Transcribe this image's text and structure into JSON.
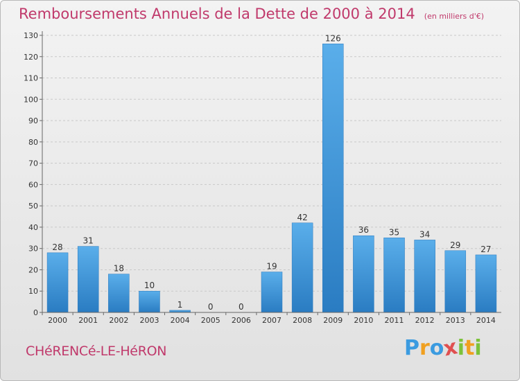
{
  "chart_data": {
    "type": "bar",
    "title": "Remboursements Annuels de la Dette de 2000 à 2014",
    "unit": "(en milliers d'€)",
    "categories": [
      "2000",
      "2001",
      "2002",
      "2003",
      "2004",
      "2005",
      "2006",
      "2007",
      "2008",
      "2009",
      "2010",
      "2011",
      "2012",
      "2013",
      "2014"
    ],
    "values": [
      28,
      31,
      18,
      10,
      1,
      0,
      0,
      19,
      42,
      126,
      36,
      35,
      34,
      29,
      27
    ],
    "data_labels": [
      "28",
      "31",
      "18",
      "10",
      "1",
      "0",
      "0",
      "19",
      "42",
      "126",
      "36",
      "35",
      "34",
      "29",
      "27"
    ],
    "ylim": [
      0,
      130
    ],
    "yticks": [
      0,
      10,
      20,
      30,
      40,
      50,
      60,
      70,
      80,
      90,
      100,
      110,
      120,
      130
    ],
    "grid": true,
    "bar_color": "#3a8fd4",
    "label_color": "#333333"
  },
  "footer": {
    "commune": "CHéRENCé-LE-HéRON",
    "logo_letters": [
      "P",
      "r",
      "o",
      "x",
      "i",
      "t",
      "i"
    ],
    "logo_colors": [
      "#3b9be0",
      "#f0a020",
      "#3b9be0",
      "#e05050",
      "#7cc23a",
      "#f0a020",
      "#7cc23a"
    ]
  }
}
